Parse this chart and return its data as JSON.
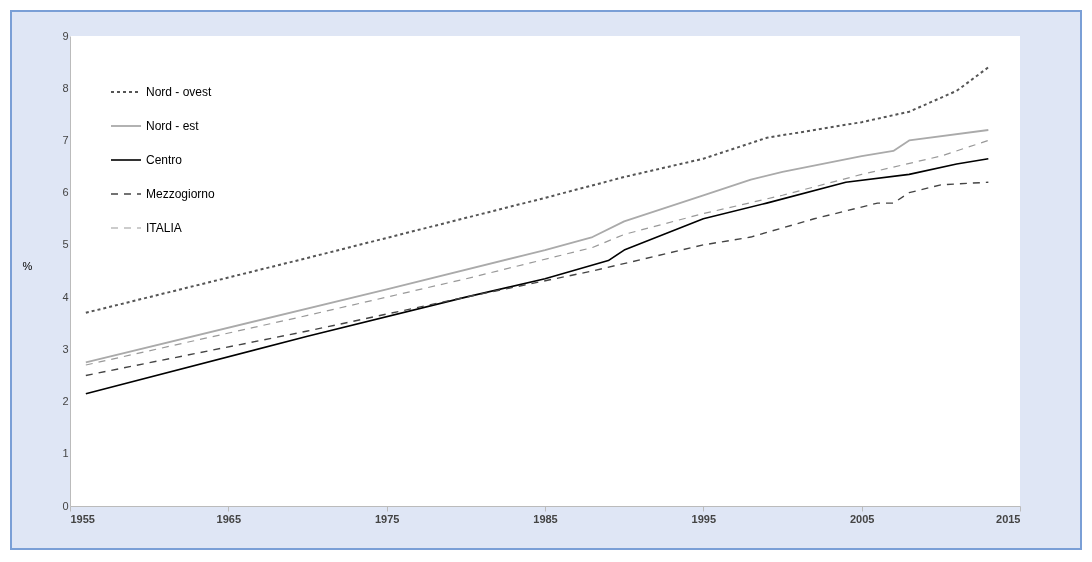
{
  "chart_data": {
    "type": "line",
    "ylabel": "%",
    "xlim": [
      1955,
      2015
    ],
    "xticks": [
      1955,
      1965,
      1975,
      1985,
      1995,
      2005,
      2015
    ],
    "ylim": [
      0,
      9
    ],
    "yticks": [
      0,
      1,
      2,
      3,
      4,
      5,
      6,
      7,
      8,
      9
    ],
    "grid": false,
    "legend": "top left",
    "series": [
      {
        "name": "Nord - ovest",
        "color": "#555555",
        "line_style": "dotted",
        "x": [
          1956,
          1970,
          1985,
          1990,
          1995,
          1999,
          2005,
          2008,
          2011,
          2013
        ],
        "values": [
          3.7,
          4.75,
          5.9,
          6.3,
          6.65,
          7.05,
          7.35,
          7.55,
          7.95,
          8.4
        ]
      },
      {
        "name": "Nord - est",
        "color": "#aaaaaa",
        "line_style": "solid",
        "x": [
          1956,
          1975,
          1985,
          1988,
          1990,
          1995,
          1998,
          2000,
          2005,
          2007,
          2008,
          2013
        ],
        "values": [
          2.75,
          4.15,
          4.9,
          5.15,
          5.45,
          5.95,
          6.25,
          6.4,
          6.7,
          6.8,
          7.0,
          7.2
        ]
      },
      {
        "name": "Centro",
        "color": "#000000",
        "line_style": "solid",
        "x": [
          1956,
          1970,
          1980,
          1985,
          1989,
          1990,
          1995,
          1999,
          2004,
          2008,
          2011,
          2013
        ],
        "values": [
          2.15,
          3.25,
          4.0,
          4.35,
          4.7,
          4.9,
          5.5,
          5.8,
          6.2,
          6.35,
          6.55,
          6.65
        ]
      },
      {
        "name": "Mezzogiorno",
        "color": "#444444",
        "line_style": "dashed",
        "x": [
          1956,
          1970,
          1980,
          1988,
          1995,
          1998,
          2002,
          2006,
          2007,
          2008,
          2010,
          2013
        ],
        "values": [
          2.5,
          3.35,
          4.0,
          4.5,
          5.0,
          5.15,
          5.5,
          5.8,
          5.8,
          6.0,
          6.15,
          6.2
        ]
      },
      {
        "name": "ITALIA",
        "color": "#999999",
        "line_style": "dashed",
        "x": [
          1956,
          1970,
          1980,
          1988,
          1990,
          1995,
          2000,
          2005,
          2010,
          2013
        ],
        "values": [
          2.7,
          3.65,
          4.35,
          4.95,
          5.2,
          5.6,
          5.95,
          6.35,
          6.7,
          7.0
        ]
      }
    ]
  }
}
